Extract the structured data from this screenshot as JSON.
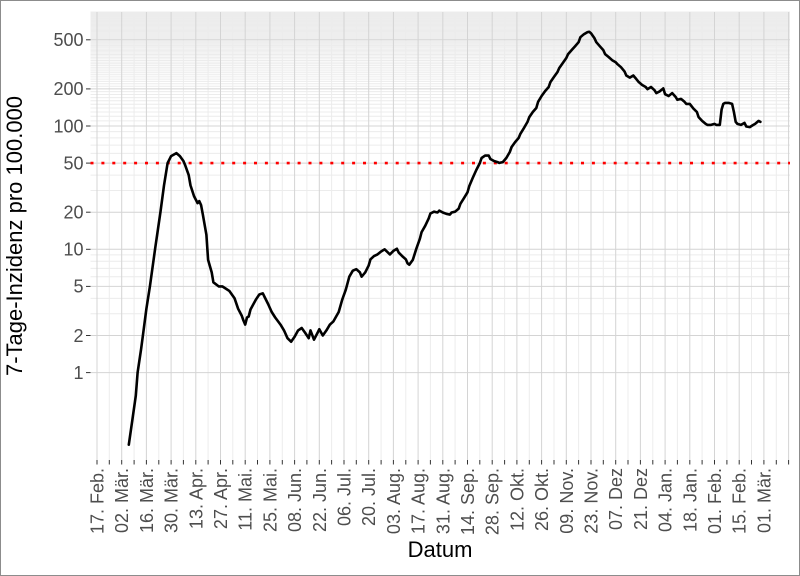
{
  "window": {
    "background": "#ffffff",
    "border_color": "#8c8c8c"
  },
  "chart_data": {
    "type": "line",
    "title": "",
    "xlabel": "Datum",
    "ylabel": "7-Tage-Inzidenz pro 100.000",
    "y_scale": "log10",
    "legend": "none",
    "grid": {
      "background": "#ffffff",
      "major_color": "#d4d4d4",
      "minor_color": "#ececec",
      "tick_color": "#333333",
      "tick_label_color": "#4d4d4d"
    },
    "y_ticks": {
      "values": [
        1,
        2,
        5,
        10,
        20,
        50,
        100,
        200,
        500
      ],
      "labels": [
        "1",
        "2",
        "5",
        "10",
        "20",
        "50",
        "100",
        "200",
        "500"
      ]
    },
    "x_ticks": {
      "start_date": "2020-02-17",
      "interval_days": 14,
      "minor_interval_days": 7,
      "labels": [
        "17. Feb.",
        "02. Mär.",
        "16. Mär.",
        "30. Mär.",
        "13. Apr.",
        "27. Apr.",
        "11. Mai.",
        "25. Mai.",
        "08. Jun.",
        "22. Jun.",
        "06. Jul.",
        "20. Jul.",
        "03. Aug.",
        "17. Aug.",
        "31. Aug.",
        "14. Sep.",
        "28. Sep.",
        "12. Okt.",
        "26. Okt.",
        "09. Nov.",
        "23. Nov.",
        "07. Dez",
        "21. Dez",
        "04. Jan.",
        "18. Jan.",
        "01. Feb.",
        "15. Feb.",
        "01. Mär."
      ]
    },
    "x_range": [
      "2020-02-13",
      "2021-03-16"
    ],
    "y_range_approx": [
      0.195,
      850
    ],
    "threshold_line": {
      "value": 50,
      "color": "#ff0000",
      "style": "dotted"
    },
    "series": [
      {
        "name": "7-Tage-Inzidenz",
        "color": "#000000",
        "points": [
          [
            "2020-03-06",
            0.26
          ],
          [
            "2020-03-08",
            0.41
          ],
          [
            "2020-03-10",
            0.65
          ],
          [
            "2020-03-11",
            1.0
          ],
          [
            "2020-03-13",
            1.55
          ],
          [
            "2020-03-14",
            2.0
          ],
          [
            "2020-03-16",
            3.3
          ],
          [
            "2020-03-18",
            5.0
          ],
          [
            "2020-03-21",
            10.2
          ],
          [
            "2020-03-24",
            20.2
          ],
          [
            "2020-03-26",
            33
          ],
          [
            "2020-03-28",
            50
          ],
          [
            "2020-03-30",
            57
          ],
          [
            "2020-04-02",
            60.3
          ],
          [
            "2020-04-04",
            57
          ],
          [
            "2020-04-06",
            52
          ],
          [
            "2020-04-07",
            48
          ],
          [
            "2020-04-09",
            40
          ],
          [
            "2020-04-10",
            33
          ],
          [
            "2020-04-12",
            27
          ],
          [
            "2020-04-14",
            23.7
          ],
          [
            "2020-04-15",
            24.6
          ],
          [
            "2020-04-16",
            22.8
          ],
          [
            "2020-04-17",
            19
          ],
          [
            "2020-04-19",
            13.1
          ],
          [
            "2020-04-20",
            8.2
          ],
          [
            "2020-04-22",
            6.5
          ],
          [
            "2020-04-23",
            5.4
          ],
          [
            "2020-04-26",
            5.0
          ],
          [
            "2020-04-28",
            5.0
          ],
          [
            "2020-04-30",
            4.8
          ],
          [
            "2020-05-02",
            4.6
          ],
          [
            "2020-05-05",
            4.0
          ],
          [
            "2020-05-07",
            3.3
          ],
          [
            "2020-05-09",
            2.9
          ],
          [
            "2020-05-10",
            2.65
          ],
          [
            "2020-05-11",
            2.45
          ],
          [
            "2020-05-12",
            2.8
          ],
          [
            "2020-05-13",
            2.85
          ],
          [
            "2020-05-14",
            3.25
          ],
          [
            "2020-05-17",
            3.9
          ],
          [
            "2020-05-19",
            4.3
          ],
          [
            "2020-05-21",
            4.4
          ],
          [
            "2020-05-22",
            4.1
          ],
          [
            "2020-05-24",
            3.6
          ],
          [
            "2020-05-26",
            3.1
          ],
          [
            "2020-05-28",
            2.8
          ],
          [
            "2020-05-31",
            2.45
          ],
          [
            "2020-06-02",
            2.2
          ],
          [
            "2020-06-04",
            1.9
          ],
          [
            "2020-06-06",
            1.78
          ],
          [
            "2020-06-08",
            1.95
          ],
          [
            "2020-06-10",
            2.2
          ],
          [
            "2020-06-12",
            2.3
          ],
          [
            "2020-06-14",
            2.1
          ],
          [
            "2020-06-16",
            1.9
          ],
          [
            "2020-06-17",
            2.2
          ],
          [
            "2020-06-19",
            1.85
          ],
          [
            "2020-06-21",
            2.1
          ],
          [
            "2020-06-22",
            2.25
          ],
          [
            "2020-06-24",
            2.0
          ],
          [
            "2020-06-26",
            2.2
          ],
          [
            "2020-06-28",
            2.45
          ],
          [
            "2020-06-30",
            2.6
          ],
          [
            "2020-07-03",
            3.1
          ],
          [
            "2020-07-05",
            3.9
          ],
          [
            "2020-07-07",
            4.7
          ],
          [
            "2020-07-09",
            6.0
          ],
          [
            "2020-07-11",
            6.7
          ],
          [
            "2020-07-13",
            6.9
          ],
          [
            "2020-07-15",
            6.5
          ],
          [
            "2020-07-16",
            6.0
          ],
          [
            "2020-07-18",
            6.5
          ],
          [
            "2020-07-20",
            7.4
          ],
          [
            "2020-07-21",
            8.3
          ],
          [
            "2020-07-23",
            8.8
          ],
          [
            "2020-07-25",
            9.1
          ],
          [
            "2020-07-27",
            9.6
          ],
          [
            "2020-07-29",
            10.0
          ],
          [
            "2020-08-01",
            9.1
          ],
          [
            "2020-08-03",
            9.7
          ],
          [
            "2020-08-05",
            10.1
          ],
          [
            "2020-08-06",
            9.4
          ],
          [
            "2020-08-08",
            8.8
          ],
          [
            "2020-08-10",
            8.3
          ],
          [
            "2020-08-11",
            7.7
          ],
          [
            "2020-08-12",
            7.5
          ],
          [
            "2020-08-14",
            8.2
          ],
          [
            "2020-08-16",
            10.1
          ],
          [
            "2020-08-18",
            12.2
          ],
          [
            "2020-08-19",
            13.8
          ],
          [
            "2020-08-21",
            15.5
          ],
          [
            "2020-08-23",
            17.8
          ],
          [
            "2020-08-24",
            19.5
          ],
          [
            "2020-08-26",
            20.2
          ],
          [
            "2020-08-28",
            19.9
          ],
          [
            "2020-08-29",
            20.6
          ],
          [
            "2020-08-31",
            19.9
          ],
          [
            "2020-09-02",
            19.4
          ],
          [
            "2020-09-04",
            19.1
          ],
          [
            "2020-09-05",
            19.9
          ],
          [
            "2020-09-07",
            20.2
          ],
          [
            "2020-09-09",
            21.4
          ],
          [
            "2020-09-10",
            23.4
          ],
          [
            "2020-09-12",
            26
          ],
          [
            "2020-09-14",
            29
          ],
          [
            "2020-09-15",
            32.6
          ],
          [
            "2020-09-17",
            38
          ],
          [
            "2020-09-19",
            44
          ],
          [
            "2020-09-21",
            50
          ],
          [
            "2020-09-22",
            55
          ],
          [
            "2020-09-24",
            57.5
          ],
          [
            "2020-09-26",
            57.5
          ],
          [
            "2020-09-27",
            54
          ],
          [
            "2020-09-29",
            52
          ],
          [
            "2020-10-01",
            51
          ],
          [
            "2020-10-02",
            50.2
          ],
          [
            "2020-10-04",
            51
          ],
          [
            "2020-10-06",
            55
          ],
          [
            "2020-10-08",
            61.5
          ],
          [
            "2020-10-09",
            67.5
          ],
          [
            "2020-10-11",
            74
          ],
          [
            "2020-10-13",
            80
          ],
          [
            "2020-10-14",
            86.5
          ],
          [
            "2020-10-16",
            96.5
          ],
          [
            "2020-10-18",
            108
          ],
          [
            "2020-10-19",
            118
          ],
          [
            "2020-10-21",
            130
          ],
          [
            "2020-10-23",
            140
          ],
          [
            "2020-10-24",
            157
          ],
          [
            "2020-10-26",
            175
          ],
          [
            "2020-10-28",
            192
          ],
          [
            "2020-10-30",
            207
          ],
          [
            "2020-10-31",
            227
          ],
          [
            "2020-11-02",
            250
          ],
          [
            "2020-11-04",
            274
          ],
          [
            "2020-11-05",
            295
          ],
          [
            "2020-11-07",
            324
          ],
          [
            "2020-11-09",
            356
          ],
          [
            "2020-11-10",
            383
          ],
          [
            "2020-11-12",
            413
          ],
          [
            "2020-11-14",
            444
          ],
          [
            "2020-11-16",
            478
          ],
          [
            "2020-11-17",
            525
          ],
          [
            "2020-11-19",
            555
          ],
          [
            "2020-11-21",
            577
          ],
          [
            "2020-11-22",
            581
          ],
          [
            "2020-11-23",
            565
          ],
          [
            "2020-11-25",
            514
          ],
          [
            "2020-11-26",
            478
          ],
          [
            "2020-11-28",
            444
          ],
          [
            "2020-11-30",
            413
          ],
          [
            "2020-12-01",
            383
          ],
          [
            "2020-12-03",
            363
          ],
          [
            "2020-12-05",
            342
          ],
          [
            "2020-12-07",
            329
          ],
          [
            "2020-12-08",
            317
          ],
          [
            "2020-12-10",
            300
          ],
          [
            "2020-12-12",
            277
          ],
          [
            "2020-12-13",
            257
          ],
          [
            "2020-12-15",
            247
          ],
          [
            "2020-12-17",
            257
          ],
          [
            "2020-12-18",
            247
          ],
          [
            "2020-12-20",
            228
          ],
          [
            "2020-12-22",
            215
          ],
          [
            "2020-12-24",
            207
          ],
          [
            "2020-12-25",
            199
          ],
          [
            "2020-12-27",
            207
          ],
          [
            "2020-12-29",
            195
          ],
          [
            "2020-12-30",
            185
          ],
          [
            "2021-01-01",
            191
          ],
          [
            "2021-01-03",
            202
          ],
          [
            "2021-01-04",
            181
          ],
          [
            "2021-01-06",
            175
          ],
          [
            "2021-01-08",
            185
          ],
          [
            "2021-01-10",
            172
          ],
          [
            "2021-01-11",
            163
          ],
          [
            "2021-01-13",
            166
          ],
          [
            "2021-01-15",
            157
          ],
          [
            "2021-01-16",
            151
          ],
          [
            "2021-01-18",
            151
          ],
          [
            "2021-01-20",
            139
          ],
          [
            "2021-01-22",
            130
          ],
          [
            "2021-01-23",
            118
          ],
          [
            "2021-01-25",
            110
          ],
          [
            "2021-01-27",
            104
          ],
          [
            "2021-01-28",
            102
          ],
          [
            "2021-01-30",
            102
          ],
          [
            "2021-02-01",
            104
          ],
          [
            "2021-02-02",
            102
          ],
          [
            "2021-02-04",
            102
          ],
          [
            "2021-02-05",
            136
          ],
          [
            "2021-02-06",
            151
          ],
          [
            "2021-02-07",
            154
          ],
          [
            "2021-02-09",
            154
          ],
          [
            "2021-02-11",
            151
          ],
          [
            "2021-02-12",
            130
          ],
          [
            "2021-02-13",
            108
          ],
          [
            "2021-02-14",
            104
          ],
          [
            "2021-02-16",
            102
          ],
          [
            "2021-02-18",
            106
          ],
          [
            "2021-02-19",
            99
          ],
          [
            "2021-02-21",
            98
          ],
          [
            "2021-02-23",
            102
          ],
          [
            "2021-02-24",
            104
          ],
          [
            "2021-02-26",
            110
          ],
          [
            "2021-02-27",
            108
          ]
        ]
      }
    ]
  }
}
